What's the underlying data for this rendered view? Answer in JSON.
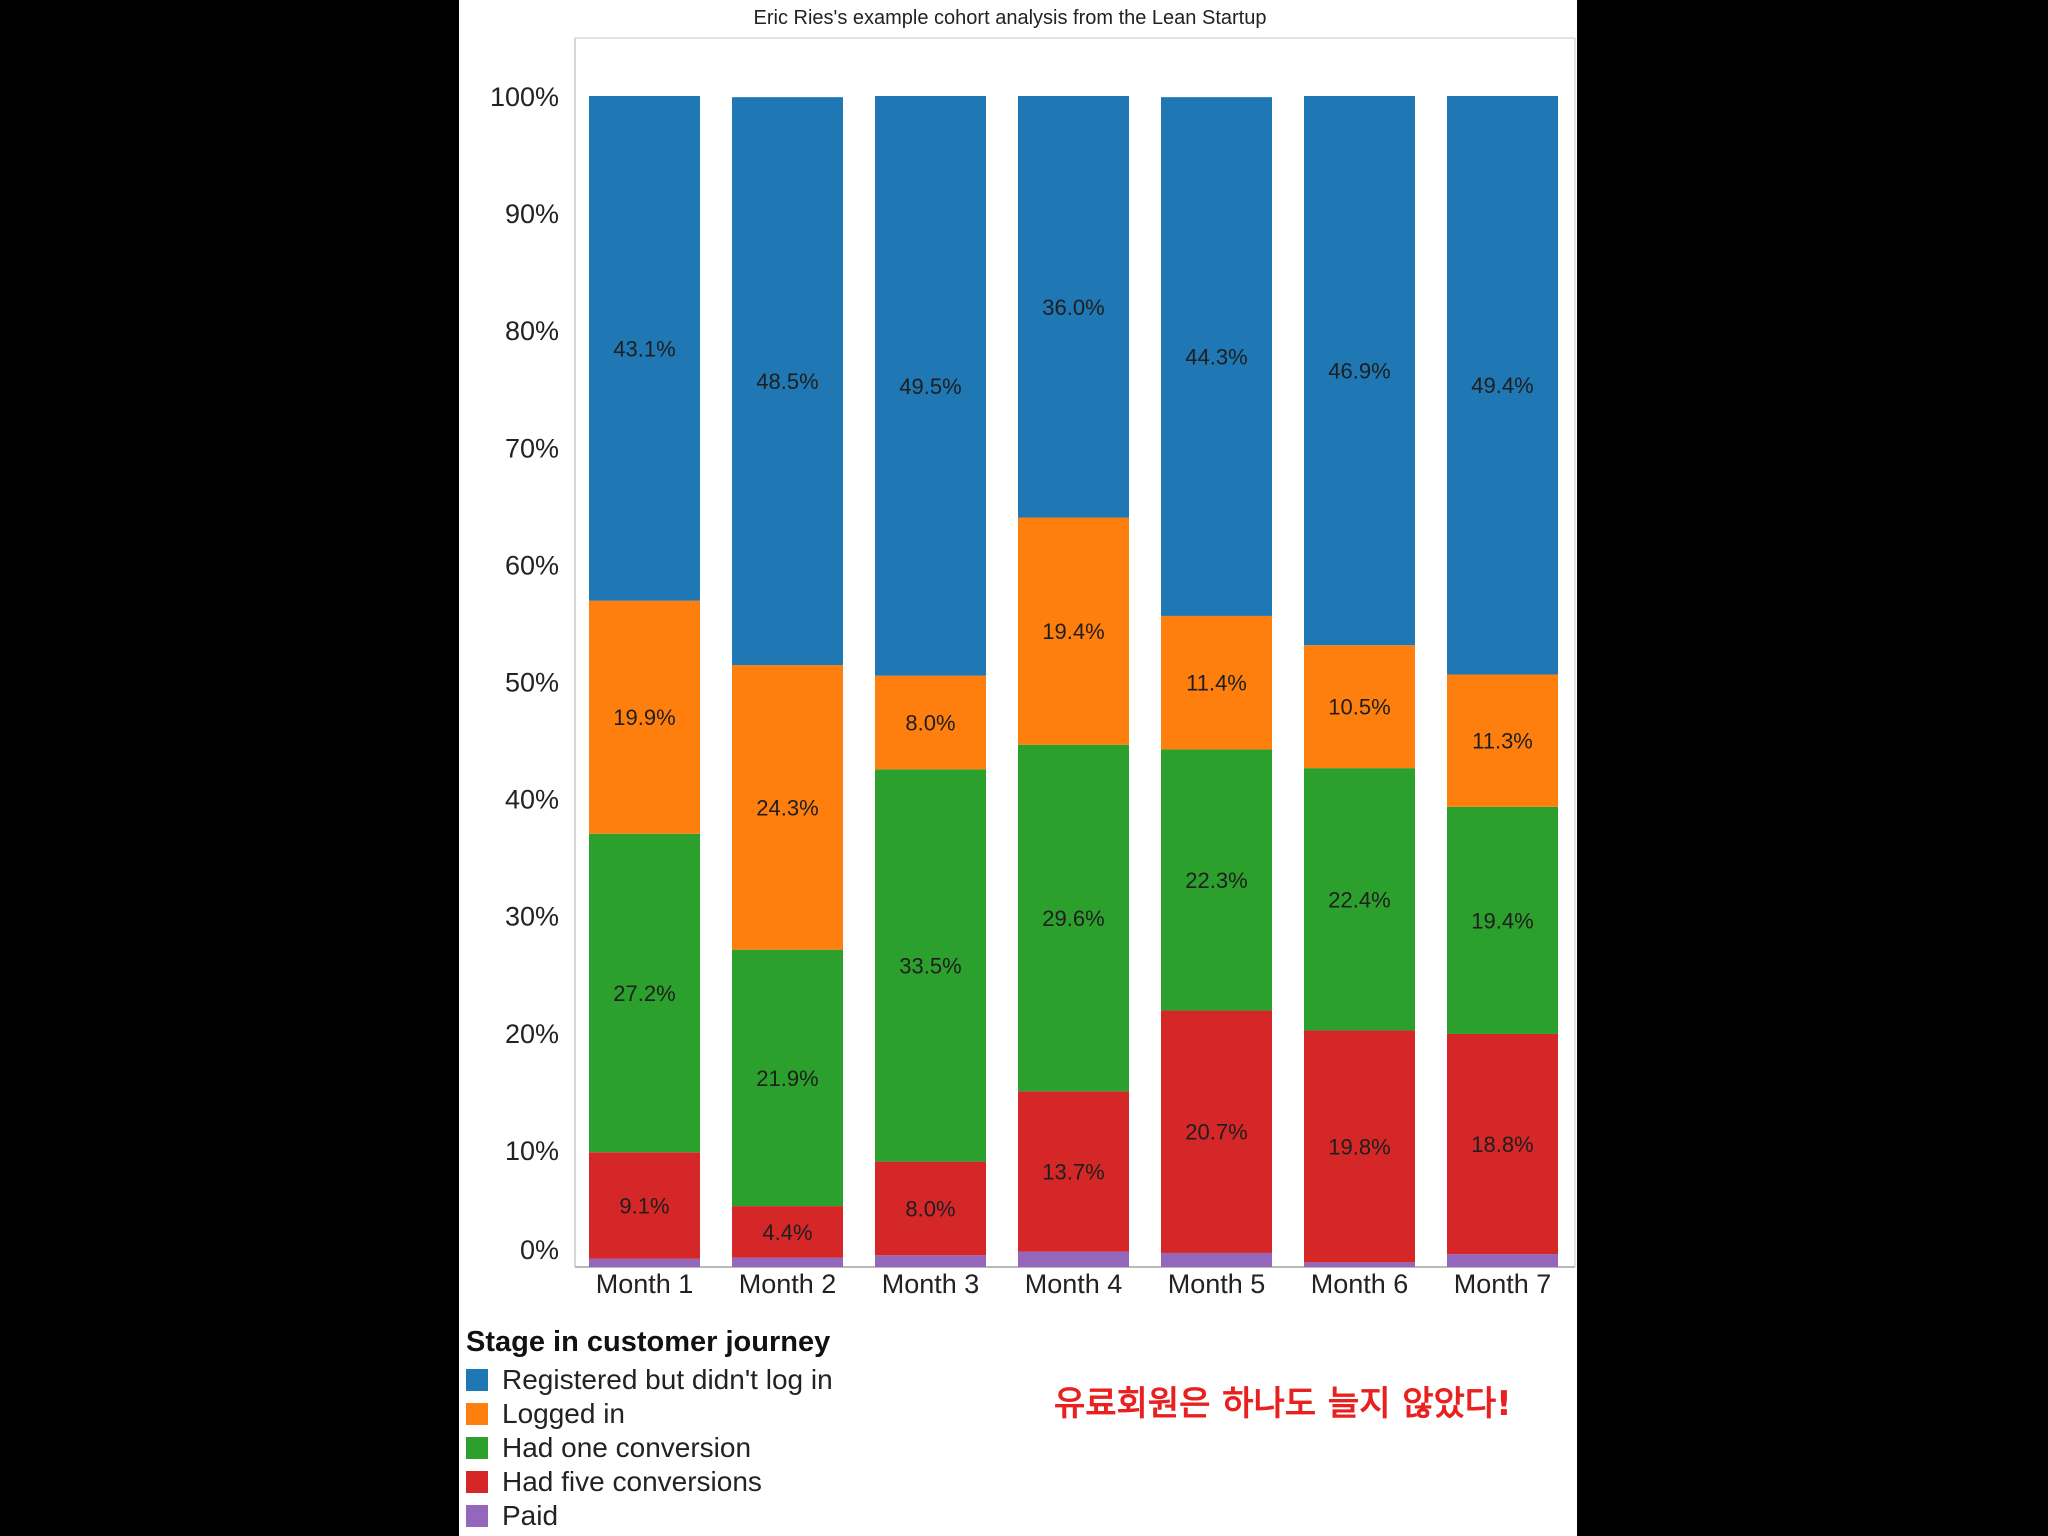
{
  "chart_data": {
    "type": "bar",
    "stacked": true,
    "title": "Eric Ries's example cohort analysis from the Lean Startup",
    "categories": [
      "Month 1",
      "Month 2",
      "Month 3",
      "Month 4",
      "Month 5",
      "Month 6",
      "Month 7"
    ],
    "ylim": [
      0,
      100
    ],
    "yticks": [
      "0%",
      "10%",
      "20%",
      "30%",
      "40%",
      "50%",
      "60%",
      "70%",
      "80%",
      "90%",
      "100%"
    ],
    "legend_title": "Stage in customer journey",
    "series": [
      {
        "name": "Paid",
        "color": "#9467bd",
        "values": [
          0.7,
          0.8,
          1.0,
          1.3,
          1.2,
          0.4,
          1.1
        ],
        "labels": [
          "",
          "",
          "",
          "",
          "",
          "",
          ""
        ]
      },
      {
        "name": "Had five conversions",
        "color": "#d62728",
        "values": [
          9.1,
          4.4,
          8.0,
          13.7,
          20.7,
          19.8,
          18.8
        ],
        "labels": [
          "9.1%",
          "4.4%",
          "8.0%",
          "13.7%",
          "20.7%",
          "19.8%",
          "18.8%"
        ]
      },
      {
        "name": "Had one conversion",
        "color": "#2ca02c",
        "values": [
          27.2,
          21.9,
          33.5,
          29.6,
          22.3,
          22.4,
          19.4
        ],
        "labels": [
          "27.2%",
          "21.9%",
          "33.5%",
          "29.6%",
          "22.3%",
          "22.4%",
          "19.4%"
        ]
      },
      {
        "name": "Logged in",
        "color": "#ff7f0e",
        "values": [
          19.9,
          24.3,
          8.0,
          19.4,
          11.4,
          10.5,
          11.3
        ],
        "labels": [
          "19.9%",
          "24.3%",
          "8.0%",
          "19.4%",
          "11.4%",
          "10.5%",
          "11.3%"
        ]
      },
      {
        "name": "Registered but didn't log in",
        "color": "#1f77b4",
        "values": [
          43.1,
          48.5,
          49.5,
          36.0,
          44.3,
          46.9,
          49.4
        ],
        "labels": [
          "43.1%",
          "48.5%",
          "49.5%",
          "36.0%",
          "44.3%",
          "46.9%",
          "49.4%"
        ]
      }
    ],
    "legend_order": [
      "Registered but didn't log in",
      "Logged in",
      "Had one conversion",
      "Had five conversions",
      "Paid"
    ]
  },
  "annotation": "유료회원은 하나도 늘지 않았다!"
}
